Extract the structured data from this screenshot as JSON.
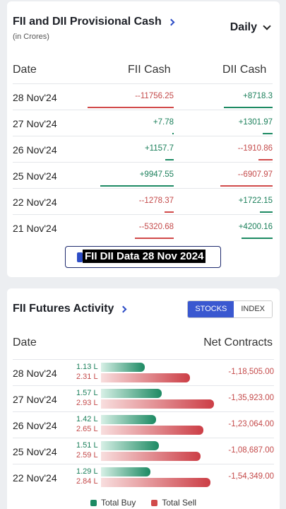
{
  "provisional": {
    "title": "FII and DII Provisional Cash",
    "subtitle": "(in Crores)",
    "period": "Daily",
    "col_date": "Date",
    "col_fii": "FII Cash",
    "col_dii": "DII Cash",
    "rows": [
      {
        "date": "28 Nov'24",
        "fii": "--11756.25",
        "dii": "+8718.3",
        "fii_sign": "neg",
        "dii_sign": "pos",
        "fii_level": 1.0,
        "dii_level": 0.75
      },
      {
        "date": "27 Nov'24",
        "fii": "+7.78",
        "dii": "+1301.97",
        "fii_sign": "pos",
        "dii_sign": "pos",
        "fii_level": 0.01,
        "dii_level": 0.15
      },
      {
        "date": "26 Nov'24",
        "fii": "+1157.7",
        "dii": "--1910.86",
        "fii_sign": "pos",
        "dii_sign": "neg",
        "fii_level": 0.1,
        "dii_level": 0.22
      },
      {
        "date": "25 Nov'24",
        "fii": "+9947.55",
        "dii": "--6907.97",
        "fii_sign": "pos",
        "dii_sign": "neg",
        "fii_level": 0.85,
        "dii_level": 0.8
      },
      {
        "date": "22 Nov'24",
        "fii": "--1278.37",
        "dii": "+1722.15",
        "fii_sign": "neg",
        "dii_sign": "pos",
        "fii_level": 0.11,
        "dii_level": 0.2
      },
      {
        "date": "21 Nov'24",
        "fii": "--5320.68",
        "dii": "+4200.16",
        "fii_sign": "neg",
        "dii_sign": "pos",
        "fii_level": 0.45,
        "dii_level": 0.48
      }
    ],
    "banner": "FII DII Data 28 Nov 2024"
  },
  "futures": {
    "title": "FII Futures Activity",
    "tabs": [
      "STOCKS",
      "INDEX"
    ],
    "col_date": "Date",
    "col_net": "Net Contracts",
    "rows": [
      {
        "date": "28 Nov'24",
        "buy": "1.13 L",
        "sell": "2.31 L",
        "net": "-1,18,505.00",
        "buy_val": 1.13,
        "sell_val": 2.31
      },
      {
        "date": "27 Nov'24",
        "buy": "1.57 L",
        "sell": "2.93 L",
        "net": "-1,35,923.00",
        "buy_val": 1.57,
        "sell_val": 2.93
      },
      {
        "date": "26 Nov'24",
        "buy": "1.42 L",
        "sell": "2.65 L",
        "net": "-1,23,064.00",
        "buy_val": 1.42,
        "sell_val": 2.65
      },
      {
        "date": "25 Nov'24",
        "buy": "1.51 L",
        "sell": "2.59 L",
        "net": "-1,08,687.00",
        "buy_val": 1.51,
        "sell_val": 2.59
      },
      {
        "date": "22 Nov'24",
        "buy": "1.29 L",
        "sell": "2.84 L",
        "net": "-1,54,349.00",
        "buy_val": 1.29,
        "sell_val": 2.84
      }
    ],
    "legend_buy": "Total Buy",
    "legend_sell": "Total Sell"
  },
  "colors": {
    "positive": "#1d8a63",
    "negative": "#d14a4a",
    "accent": "#3a58d0"
  }
}
